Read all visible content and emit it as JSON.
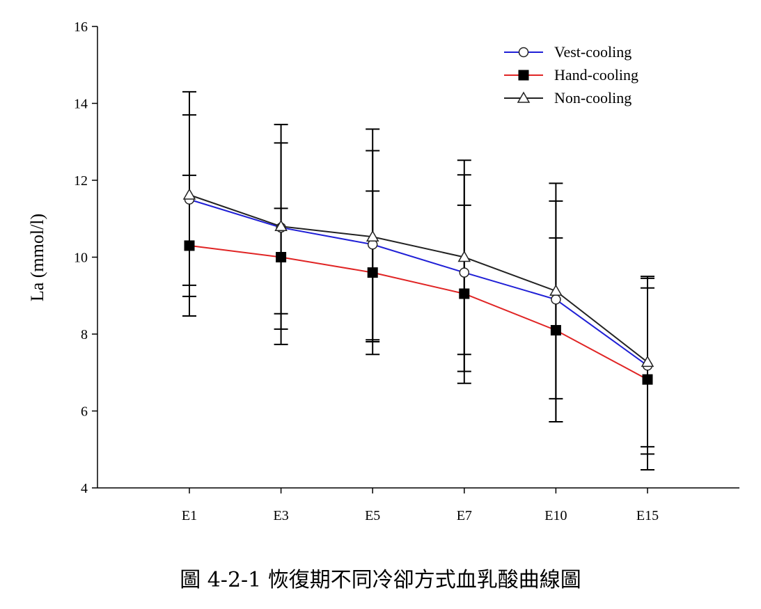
{
  "caption": "圖 4-2-1 恢復期不同冷卻方式血乳酸曲線圖",
  "chart_data": {
    "type": "line",
    "title": "",
    "xlabel": "",
    "ylabel": "La (mmol/l)",
    "categories": [
      "E1",
      "E3",
      "E5",
      "E7",
      "E10",
      "E15"
    ],
    "ylim": [
      4,
      16
    ],
    "yticks": [
      4,
      6,
      8,
      10,
      12,
      14,
      16
    ],
    "grid": false,
    "legend_position": "top-right",
    "series": [
      {
        "name": "Vest-cooling",
        "color": "#1f1fd6",
        "marker": "open-circle",
        "values": [
          11.5,
          10.77,
          10.33,
          9.6,
          8.9,
          7.18
        ],
        "err_low": [
          8.98,
          8.13,
          7.8,
          7.03,
          6.32,
          4.88
        ],
        "err_high": [
          13.7,
          12.97,
          12.77,
          12.14,
          11.46,
          9.45
        ]
      },
      {
        "name": "Hand-cooling",
        "color": "#e02424",
        "marker": "filled-square",
        "values": [
          10.3,
          10.0,
          9.6,
          9.05,
          8.1,
          6.82
        ],
        "err_low": [
          8.47,
          8.53,
          7.85,
          7.47,
          5.72,
          4.47
        ],
        "err_high": [
          12.13,
          11.27,
          11.72,
          11.35,
          10.5,
          9.2
        ]
      },
      {
        "name": "Non-cooling",
        "color": "#222222",
        "marker": "open-triangle",
        "values": [
          11.62,
          10.8,
          10.53,
          10.0,
          9.12,
          7.27
        ],
        "err_low": [
          9.27,
          7.73,
          7.47,
          6.72,
          5.72,
          5.07
        ],
        "err_high": [
          14.3,
          13.45,
          13.33,
          12.52,
          11.92,
          9.5
        ]
      }
    ]
  }
}
